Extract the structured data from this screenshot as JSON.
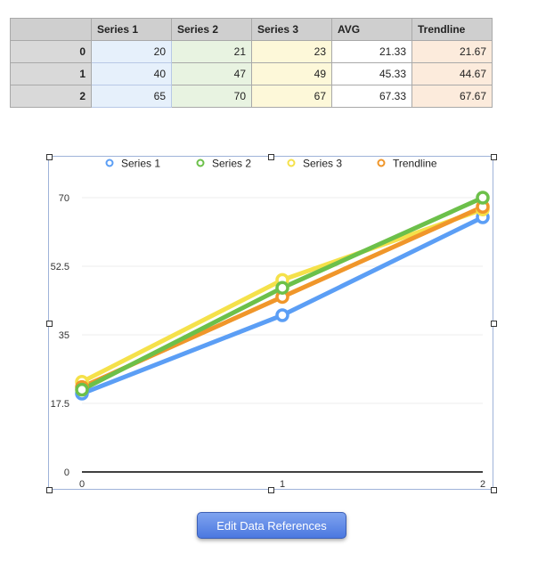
{
  "table": {
    "columns": [
      "Series 1",
      "Series 2",
      "Series 3",
      "AVG",
      "Trendline"
    ],
    "rows": [
      {
        "label": "0",
        "cells": [
          "20",
          "21",
          "23",
          "21.33",
          "21.67"
        ]
      },
      {
        "label": "1",
        "cells": [
          "40",
          "47",
          "49",
          "45.33",
          "44.67"
        ]
      },
      {
        "label": "2",
        "cells": [
          "65",
          "70",
          "67",
          "67.33",
          "67.67"
        ]
      }
    ]
  },
  "chart_data": {
    "type": "line",
    "x": [
      "0",
      "1",
      "2"
    ],
    "series": [
      {
        "name": "Series 1",
        "color": "#5b9ef5",
        "values": [
          20,
          40,
          65
        ]
      },
      {
        "name": "Series 2",
        "color": "#6cc04a",
        "values": [
          21,
          47,
          70
        ]
      },
      {
        "name": "Series 3",
        "color": "#f5e14a",
        "values": [
          23,
          49,
          67
        ]
      },
      {
        "name": "Trendline",
        "color": "#f0962a",
        "values": [
          21.67,
          44.67,
          67.67
        ]
      }
    ],
    "ylim": [
      0,
      75
    ],
    "yticks": [
      "0",
      "17.5",
      "35",
      "52.5",
      "70"
    ],
    "ytick_values": [
      0,
      17.5,
      35,
      52.5,
      70
    ],
    "grid": true,
    "legend_position": "top"
  },
  "button": {
    "label": "Edit Data References"
  }
}
